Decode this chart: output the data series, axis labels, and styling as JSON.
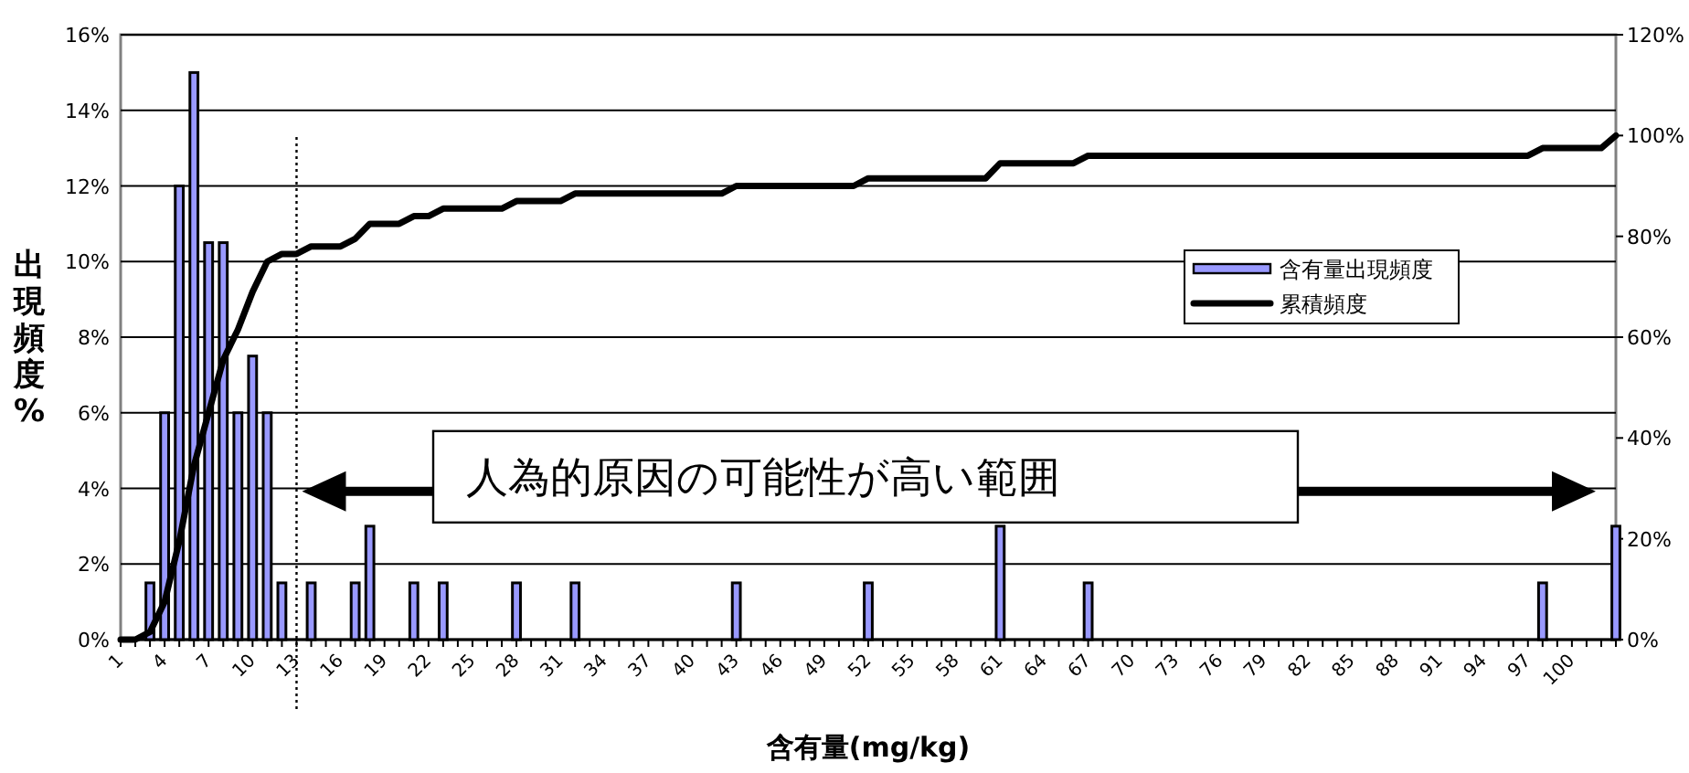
{
  "chart_data": {
    "type": "bar",
    "xlabel": "含有量(mg/kg)",
    "ylabel": "出現頻度%",
    "categories": [
      "1",
      null,
      null,
      "4",
      null,
      null,
      "7",
      null,
      null,
      "10",
      null,
      null,
      "13",
      null,
      null,
      "16",
      null,
      null,
      "19",
      null,
      null,
      "22",
      null,
      null,
      "25",
      null,
      null,
      "28",
      null,
      null,
      "31",
      null,
      null,
      "34",
      null,
      null,
      "37",
      null,
      null,
      "40",
      null,
      null,
      "43",
      null,
      null,
      "46",
      null,
      null,
      "49",
      null,
      null,
      "52",
      null,
      null,
      "55",
      null,
      null,
      "58",
      null,
      null,
      "61",
      null,
      null,
      "64",
      null,
      null,
      "67",
      null,
      null,
      "70",
      null,
      null,
      "73",
      null,
      null,
      "76",
      null,
      null,
      "79",
      null,
      null,
      "82",
      null,
      null,
      "85",
      null,
      null,
      "88",
      null,
      null,
      "91",
      null,
      null,
      "94",
      null,
      null,
      "97",
      null,
      null,
      "100",
      null,
      null,
      null
    ],
    "series": [
      {
        "name": "含有量出現頻度",
        "color": "#9999ff",
        "values": [
          0,
          0,
          1.5,
          6,
          12,
          15,
          10.5,
          10.5,
          6,
          7.5,
          6,
          1.5,
          0,
          1.5,
          0,
          0,
          1.5,
          3,
          0,
          0,
          1.5,
          0,
          1.5,
          0,
          0,
          0,
          0,
          1.5,
          0,
          0,
          0,
          1.5,
          0,
          0,
          0,
          0,
          0,
          0,
          0,
          0,
          0,
          0,
          1.5,
          0,
          0,
          0,
          0,
          0,
          0,
          0,
          0,
          1.5,
          0,
          0,
          0,
          0,
          0,
          0,
          0,
          0,
          3,
          0,
          0,
          0,
          0,
          0,
          1.5,
          0,
          0,
          0,
          0,
          0,
          0,
          0,
          0,
          0,
          0,
          0,
          0,
          0,
          0,
          0,
          0,
          0,
          0,
          0,
          0,
          0,
          0,
          0,
          0,
          0,
          0,
          0,
          0,
          0,
          0,
          1.5,
          0,
          0,
          0,
          0,
          3
        ]
      },
      {
        "name": "累積頻度",
        "type": "line",
        "color": "#000000",
        "axis": "y2",
        "values": [
          0,
          0,
          1.5,
          7.5,
          19.5,
          34.5,
          45,
          55.5,
          61.5,
          69,
          75,
          76.5,
          76.5,
          78,
          78,
          78,
          79.5,
          82.5,
          82.5,
          82.5,
          84,
          84,
          85.5,
          85.5,
          85.5,
          85.5,
          85.5,
          87,
          87,
          87,
          87,
          88.5,
          88.5,
          88.5,
          88.5,
          88.5,
          88.5,
          88.5,
          88.5,
          88.5,
          88.5,
          88.5,
          90,
          90,
          90,
          90,
          90,
          90,
          90,
          90,
          90,
          91.5,
          91.5,
          91.5,
          91.5,
          91.5,
          91.5,
          91.5,
          91.5,
          91.5,
          94.5,
          94.5,
          94.5,
          94.5,
          94.5,
          94.5,
          96,
          96,
          96,
          96,
          96,
          96,
          96,
          96,
          96,
          96,
          96,
          96,
          96,
          96,
          96,
          96,
          96,
          96,
          96,
          96,
          96,
          96,
          96,
          96,
          96,
          96,
          96,
          96,
          96,
          96,
          96,
          97.5,
          97.5,
          97.5,
          97.5,
          97.5,
          100
        ]
      }
    ],
    "ylim": [
      0,
      16
    ],
    "yticks": [
      {
        "value": 0,
        "label": "0%"
      },
      {
        "value": 2,
        "label": "2%"
      },
      {
        "value": 4,
        "label": "4%"
      },
      {
        "value": 6,
        "label": "6%"
      },
      {
        "value": 8,
        "label": "8%"
      },
      {
        "value": 10,
        "label": "10%"
      },
      {
        "value": 12,
        "label": "12%"
      },
      {
        "value": 14,
        "label": "14%"
      },
      {
        "value": 16,
        "label": "16%"
      }
    ],
    "y2lim": [
      0,
      120
    ],
    "y2ticks": [
      {
        "value": 0,
        "label": "0%"
      },
      {
        "value": 20,
        "label": "20%"
      },
      {
        "value": 40,
        "label": "40%"
      },
      {
        "value": 60,
        "label": "60%"
      },
      {
        "value": 80,
        "label": "80%"
      },
      {
        "value": 100,
        "label": "100%"
      },
      {
        "value": 120,
        "label": "120%"
      }
    ],
    "ref_lines": [
      {
        "axis": "x",
        "value": "13",
        "color": "#000000",
        "line_style": "dotted"
      }
    ],
    "annotations": [
      "人為的原因の可能性が高い範囲"
    ],
    "grid": "y",
    "legend": "right",
    "marker": "none",
    "line_style": "solid"
  }
}
